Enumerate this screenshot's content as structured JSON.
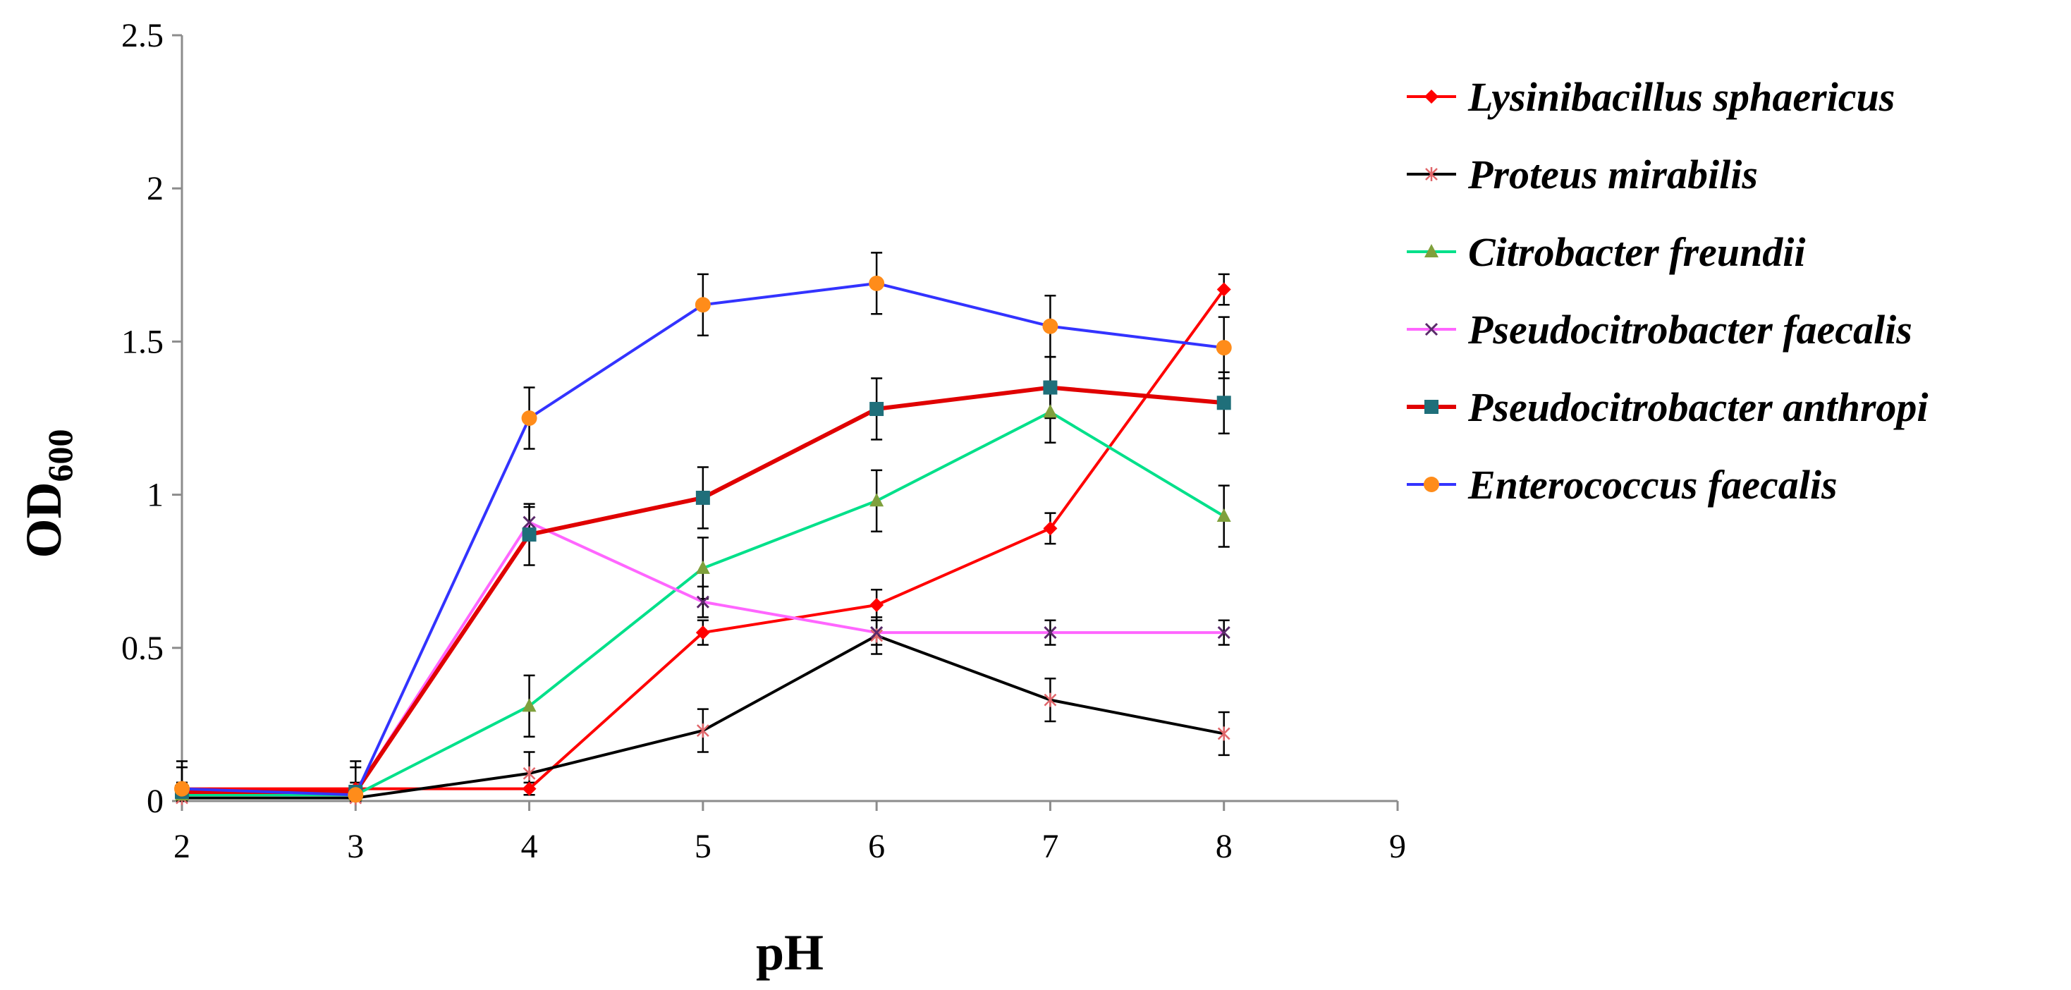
{
  "chart_data": {
    "type": "line",
    "title": "",
    "xlabel": "pH",
    "ylabel": "OD",
    "ylabel_subscript": "600",
    "xlim": [
      2,
      9
    ],
    "ylim": [
      0,
      2.5
    ],
    "xticks": [
      2,
      3,
      4,
      5,
      6,
      7,
      8,
      9
    ],
    "yticks": [
      0,
      0.5,
      1,
      1.5,
      2,
      2.5
    ],
    "ytick_labels": [
      "0",
      "0.5",
      "1",
      "1.5",
      "2",
      "2.5"
    ],
    "grid": false,
    "legend_position": "right",
    "x": [
      2,
      3,
      4,
      5,
      6,
      7,
      8
    ],
    "series": [
      {
        "name": "Lysinibacillus sphaericus",
        "color": "#ff0000",
        "marker": "diamond",
        "values": [
          0.04,
          0.04,
          0.04,
          0.55,
          0.64,
          0.89,
          1.67
        ],
        "errors": [
          0.02,
          0.02,
          0.02,
          0.04,
          0.05,
          0.05,
          0.05
        ]
      },
      {
        "name": "Proteus mirabilis",
        "color": "#000000",
        "marker": "star",
        "values": [
          0.01,
          0.01,
          0.09,
          0.23,
          0.54,
          0.33,
          0.22
        ],
        "errors": [
          0.1,
          0.1,
          0.07,
          0.07,
          0.06,
          0.07,
          0.07
        ]
      },
      {
        "name": "Citrobacter freundii",
        "color": "#00e08a",
        "marker": "triangle",
        "values": [
          0.02,
          0.02,
          0.31,
          0.76,
          0.98,
          1.27,
          0.93
        ],
        "errors": [
          0.01,
          0.01,
          0.1,
          0.1,
          0.1,
          0.1,
          0.1
        ]
      },
      {
        "name": "Pseudocitrobacter faecalis",
        "color": "#ff66ff",
        "marker": "x",
        "values": [
          0.03,
          0.03,
          0.91,
          0.65,
          0.55,
          0.55,
          0.55
        ],
        "errors": [
          0.02,
          0.02,
          0.05,
          0.05,
          0.04,
          0.04,
          0.04
        ]
      },
      {
        "name": "Pseudocitrobacter anthropi",
        "color": "#e00000",
        "marker": "square",
        "values": [
          0.03,
          0.03,
          0.87,
          0.99,
          1.28,
          1.35,
          1.3
        ],
        "errors": [
          0.1,
          0.1,
          0.1,
          0.1,
          0.1,
          0.1,
          0.1
        ]
      },
      {
        "name": "Enterococcus faecalis",
        "color": "#3333ff",
        "marker": "circle",
        "values": [
          0.04,
          0.02,
          1.25,
          1.62,
          1.69,
          1.55,
          1.48
        ],
        "errors": [
          0.02,
          0.02,
          0.1,
          0.1,
          0.1,
          0.1,
          0.1
        ]
      }
    ]
  }
}
